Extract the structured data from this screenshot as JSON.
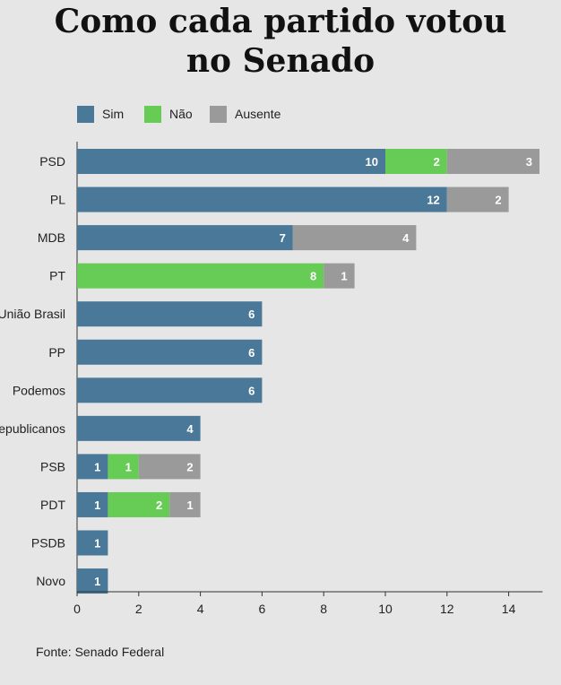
{
  "title_line1": "Como cada partido votou",
  "title_line2": "no Senado",
  "source": "Fonte: Senado Federal",
  "colors": {
    "sim": "#4a7898",
    "nao": "#66cc55",
    "ausente": "#9a9a9a"
  },
  "chart_data": {
    "type": "bar",
    "orientation": "horizontal",
    "stacked": true,
    "categories": [
      "PSD",
      "PL",
      "MDB",
      "PT",
      "União Brasil",
      "PP",
      "Podemos",
      "Republicanos",
      "PSB",
      "PDT",
      "PSDB",
      "Novo"
    ],
    "series": [
      {
        "name": "Sim",
        "color": "#4a7898",
        "values": [
          10,
          12,
          7,
          0,
          6,
          6,
          6,
          4,
          1,
          1,
          1,
          1
        ]
      },
      {
        "name": "Não",
        "color": "#66cc55",
        "values": [
          2,
          0,
          0,
          8,
          0,
          0,
          0,
          0,
          1,
          2,
          0,
          0
        ]
      },
      {
        "name": "Ausente",
        "color": "#9a9a9a",
        "values": [
          3,
          2,
          4,
          1,
          0,
          0,
          0,
          0,
          2,
          1,
          0,
          0
        ]
      }
    ],
    "xticks": [
      0,
      2,
      4,
      6,
      8,
      10,
      12,
      14
    ],
    "xlim": [
      0,
      15.1
    ],
    "grid": false,
    "legend": "top-left"
  }
}
